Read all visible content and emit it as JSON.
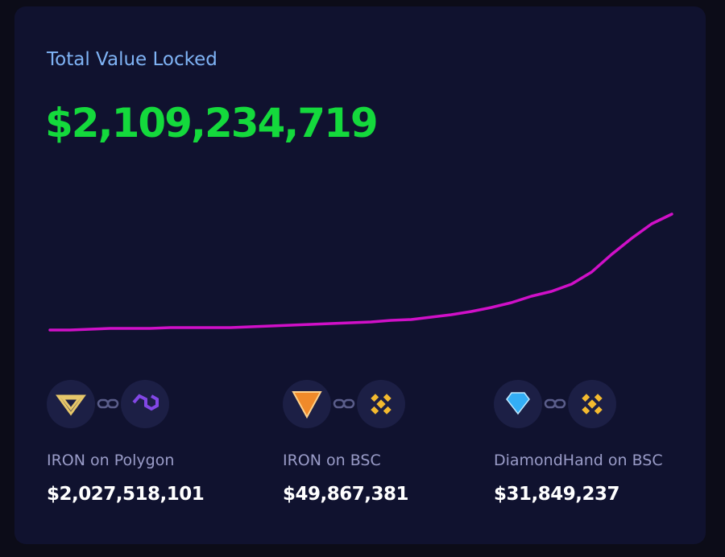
{
  "header": {
    "title": "Total Value Locked",
    "total": "$2,109,234,719"
  },
  "sparkline": {
    "type": "line",
    "color": "#d010c8",
    "ylim": [
      0,
      144
    ],
    "values": [
      0,
      0,
      1,
      2,
      2,
      2,
      3,
      3,
      3,
      3,
      4,
      5,
      6,
      7,
      8,
      9,
      10,
      12,
      13,
      16,
      19,
      23,
      28,
      34,
      42,
      48,
      57,
      72,
      94,
      114,
      132,
      144
    ]
  },
  "pools": [
    {
      "label": "IRON on Polygon",
      "value": "$2,027,518,101"
    },
    {
      "label": "IRON on BSC",
      "value": "$49,867,381"
    },
    {
      "label": "DiamondHand on BSC",
      "value": "$31,849,237"
    }
  ]
}
